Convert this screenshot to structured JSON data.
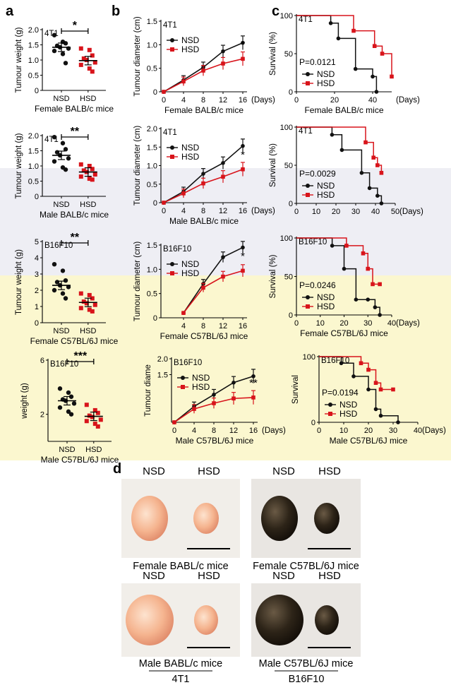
{
  "panel_labels": [
    "a",
    "b",
    "c",
    "d"
  ],
  "colors": {
    "nsd": "#111111",
    "hsd": "#d8141b",
    "band_row2": "#eeeef4",
    "band_row34": "#fbf7cf"
  },
  "chart_data": [
    {
      "id": "a1",
      "type": "scatter",
      "tag": "4T1",
      "ylabel": "Tumour weight (g)",
      "xlabel": "Female BALB/c mice",
      "categories": [
        "NSD",
        "HSD"
      ],
      "ylim": [
        0,
        2.0
      ],
      "yticks": [
        "0",
        "0.5",
        "1.0",
        "1.5",
        "2.0"
      ],
      "significance": "*",
      "series": [
        {
          "name": "NSD",
          "values": [
            1.82,
            1.6,
            1.55,
            1.47,
            1.42,
            1.38,
            1.3,
            1.2,
            0.9
          ],
          "mean": 1.42
        },
        {
          "name": "HSD",
          "values": [
            1.38,
            1.33,
            1.15,
            1.05,
            1.0,
            0.92,
            0.84,
            0.72,
            0.62
          ],
          "mean": 0.98
        }
      ]
    },
    {
      "id": "b1",
      "type": "line",
      "tag": "4T1",
      "ylabel": "Tumour diameter (cm)",
      "xlabel": "Female BALB/c mice",
      "xunit": "(Days)",
      "x": [
        0,
        4,
        8,
        12,
        16
      ],
      "xticks": [
        "0",
        "4",
        "8",
        "12",
        "16"
      ],
      "ylim": [
        0,
        1.5
      ],
      "yticks": [
        "0",
        "0.5",
        "1.0",
        "1.5"
      ],
      "significance": "*",
      "series": [
        {
          "name": "NSD",
          "values": [
            0,
            0.25,
            0.52,
            0.86,
            1.04
          ]
        },
        {
          "name": "HSD",
          "values": [
            0,
            0.22,
            0.45,
            0.6,
            0.7
          ]
        }
      ]
    },
    {
      "id": "c1",
      "type": "line",
      "tag": "4T1",
      "ylabel": "Survival (%)",
      "xlabel": "Female BALB/c mice",
      "xunit": "(Days)",
      "xlim": [
        0,
        50
      ],
      "xticks": [
        "0",
        "20",
        "40"
      ],
      "ylim": [
        0,
        100
      ],
      "yticks": [
        "0",
        "50",
        "100"
      ],
      "pvalue": "P=0.0121",
      "series": [
        {
          "name": "NSD",
          "steps": [
            [
              0,
              100
            ],
            [
              18,
              90
            ],
            [
              22,
              70
            ],
            [
              31,
              30
            ],
            [
              40,
              20
            ],
            [
              42,
              0
            ]
          ]
        },
        {
          "name": "HSD",
          "steps": [
            [
              0,
              100
            ],
            [
              30,
              80
            ],
            [
              41,
              60
            ],
            [
              45,
              50
            ],
            [
              50,
              20
            ]
          ]
        }
      ]
    },
    {
      "id": "a2",
      "type": "scatter",
      "tag": "4T1",
      "ylabel": "Tumour weight (g)",
      "xlabel": "Male BALB/c mice",
      "categories": [
        "NSD",
        "HSD"
      ],
      "ylim": [
        0,
        2.0
      ],
      "yticks": [
        "0",
        "0.5",
        "1.0",
        "1.5",
        "2.0"
      ],
      "significance": "**",
      "series": [
        {
          "name": "NSD",
          "values": [
            1.95,
            1.75,
            1.55,
            1.45,
            1.35,
            1.25,
            1.15,
            0.95,
            0.88
          ],
          "mean": 1.35
        },
        {
          "name": "HSD",
          "values": [
            1.05,
            1.0,
            0.9,
            0.85,
            0.8,
            0.72,
            0.65,
            0.58,
            0.55
          ],
          "mean": 0.8
        }
      ]
    },
    {
      "id": "b2",
      "type": "line",
      "tag": "4T1",
      "ylabel": "Tumour diameter (cm)",
      "xlabel": "Male BALB/c mice",
      "xunit": "(Days)",
      "x": [
        0,
        4,
        8,
        12,
        16
      ],
      "xticks": [
        "0",
        "4",
        "8",
        "12",
        "16"
      ],
      "ylim": [
        0,
        2.0
      ],
      "yticks": [
        "0",
        "0.5",
        "1.0",
        "1.5",
        "2.0"
      ],
      "significance": "*",
      "series": [
        {
          "name": "NSD",
          "values": [
            0,
            0.3,
            0.78,
            1.07,
            1.53
          ]
        },
        {
          "name": "HSD",
          "values": [
            0,
            0.25,
            0.52,
            0.7,
            0.9
          ]
        }
      ]
    },
    {
      "id": "c2",
      "type": "line",
      "tag": "4T1",
      "ylabel": "Survival (%)",
      "xlabel": "",
      "xunit": "(Days)",
      "xlim": [
        0,
        50
      ],
      "xticks": [
        "0",
        "10",
        "20",
        "30",
        "40",
        "50"
      ],
      "ylim": [
        0,
        100
      ],
      "yticks": [
        "0",
        "50",
        "100"
      ],
      "pvalue": "P=0.0029",
      "series": [
        {
          "name": "NSD",
          "steps": [
            [
              0,
              100
            ],
            [
              18,
              90
            ],
            [
              23,
              70
            ],
            [
              33,
              40
            ],
            [
              37,
              20
            ],
            [
              41,
              10
            ],
            [
              43,
              0
            ]
          ]
        },
        {
          "name": "HSD",
          "steps": [
            [
              0,
              100
            ],
            [
              35,
              80
            ],
            [
              39,
              60
            ],
            [
              41,
              50
            ],
            [
              43,
              40
            ]
          ]
        }
      ]
    },
    {
      "id": "a3",
      "type": "scatter",
      "tag": "B16F10",
      "ylabel": "Tumour weight (g)",
      "xlabel": "Female C57BL/6J mice",
      "categories": [
        "NSD",
        "HSD"
      ],
      "ylim": [
        0,
        5
      ],
      "yticks": [
        "0",
        "1",
        "2",
        "3",
        "4",
        "5"
      ],
      "significance": "**",
      "series": [
        {
          "name": "NSD",
          "values": [
            3.6,
            3.2,
            2.6,
            2.5,
            2.3,
            2.2,
            2.0,
            1.8,
            1.5
          ],
          "mean": 2.3
        },
        {
          "name": "HSD",
          "values": [
            1.8,
            1.7,
            1.5,
            1.3,
            1.2,
            1.1,
            0.9,
            0.8,
            0.7
          ],
          "mean": 1.25
        }
      ]
    },
    {
      "id": "b3",
      "type": "line",
      "tag": "B16F10",
      "ylabel": "Tumour diameter (cm)",
      "xlabel": "Female C57BL/6J mice",
      "xunit": "",
      "x": [
        4,
        8,
        12,
        16
      ],
      "xticks": [
        "4",
        "8",
        "12",
        "16"
      ],
      "ylim": [
        0,
        1.5
      ],
      "yticks": [
        "0",
        "0.5",
        "1.0",
        "1.5"
      ],
      "significance": "*",
      "series": [
        {
          "name": "NSD",
          "values": [
            0.1,
            0.7,
            1.25,
            1.45
          ]
        },
        {
          "name": "HSD",
          "values": [
            0.1,
            0.62,
            0.85,
            0.97
          ]
        }
      ]
    },
    {
      "id": "c3",
      "type": "line",
      "tag": "B16F10",
      "ylabel": "Survival (%)",
      "xlabel": "Female C57BL/6J mice",
      "xunit": "(Days)",
      "xlim": [
        0,
        40
      ],
      "xticks": [
        "0",
        "10",
        "20",
        "30",
        "40"
      ],
      "ylim": [
        0,
        100
      ],
      "yticks": [
        "0",
        "50",
        "100"
      ],
      "pvalue": "P=0.0246",
      "series": [
        {
          "name": "NSD",
          "steps": [
            [
              0,
              100
            ],
            [
              15,
              90
            ],
            [
              20,
              60
            ],
            [
              25,
              20
            ],
            [
              30,
              20
            ],
            [
              33,
              10
            ],
            [
              35,
              0
            ]
          ]
        },
        {
          "name": "HSD",
          "steps": [
            [
              0,
              100
            ],
            [
              21,
              90
            ],
            [
              28,
              80
            ],
            [
              30,
              60
            ],
            [
              32,
              40
            ],
            [
              35,
              40
            ]
          ]
        }
      ]
    },
    {
      "id": "a4",
      "type": "scatter",
      "tag": "B16F10",
      "ylabel": "weight (g)",
      "xlabel": "Male C57BL/6J mice",
      "categories": [
        "NSD",
        "HSD"
      ],
      "ylim": [
        0,
        6
      ],
      "yticks": [
        "2",
        "6"
      ],
      "significance": "***",
      "series": [
        {
          "name": "NSD",
          "values": [
            3.9,
            3.6,
            3.3,
            3.1,
            3.0,
            2.8,
            2.5,
            2.2,
            2.0
          ],
          "mean": 3.0
        },
        {
          "name": "HSD",
          "values": [
            2.7,
            2.3,
            2.1,
            1.9,
            1.8,
            1.6,
            1.5,
            1.3,
            1.1
          ],
          "mean": 1.85
        }
      ]
    },
    {
      "id": "b4",
      "type": "line",
      "tag": "B16F10",
      "ylabel": "Tumour diame",
      "xlabel": "Male C57BL/6J mice",
      "xunit": "(Days)",
      "x": [
        0,
        4,
        8,
        12,
        16
      ],
      "xticks": [
        "0",
        "4",
        "8",
        "12",
        "16"
      ],
      "ylim": [
        0,
        2.0
      ],
      "yticks": [
        "1.5",
        "2.0"
      ],
      "significance": "**",
      "series": [
        {
          "name": "NSD",
          "values": [
            0,
            0.5,
            0.87,
            1.25,
            1.45
          ]
        },
        {
          "name": "HSD",
          "values": [
            0,
            0.42,
            0.6,
            0.75,
            0.78
          ]
        }
      ]
    },
    {
      "id": "c4",
      "type": "line",
      "tag": "B16F10",
      "ylabel": "Survival",
      "xlabel": "Male C57BL/6J mice",
      "xunit": "(Days)",
      "xlim": [
        0,
        40
      ],
      "xticks": [
        "0",
        "10",
        "20",
        "30",
        "40"
      ],
      "ylim": [
        0,
        100
      ],
      "yticks": [
        "0",
        "100"
      ],
      "pvalue": "P=0.0194",
      "series": [
        {
          "name": "NSD",
          "steps": [
            [
              0,
              100
            ],
            [
              9,
              90
            ],
            [
              14,
              70
            ],
            [
              20,
              50
            ],
            [
              23,
              20
            ],
            [
              25,
              10
            ],
            [
              32,
              0
            ]
          ]
        },
        {
          "name": "HSD",
          "steps": [
            [
              0,
              100
            ],
            [
              17,
              90
            ],
            [
              20,
              80
            ],
            [
              23,
              60
            ],
            [
              25,
              50
            ],
            [
              30,
              50
            ]
          ]
        }
      ]
    }
  ],
  "photos": {
    "labels": {
      "nsd": "NSD",
      "hsd": "HSD"
    },
    "groups": [
      {
        "caption": "Female BABL/c mice",
        "tissue": "pink"
      },
      {
        "caption": "Female C57BL/6J mice",
        "tissue": "dark"
      },
      {
        "caption": "Male BABL/c mice",
        "tissue": "pink"
      },
      {
        "caption": "Male C57BL/6J mice",
        "tissue": "dark"
      }
    ],
    "footers": [
      "4T1",
      "B16F10"
    ]
  }
}
